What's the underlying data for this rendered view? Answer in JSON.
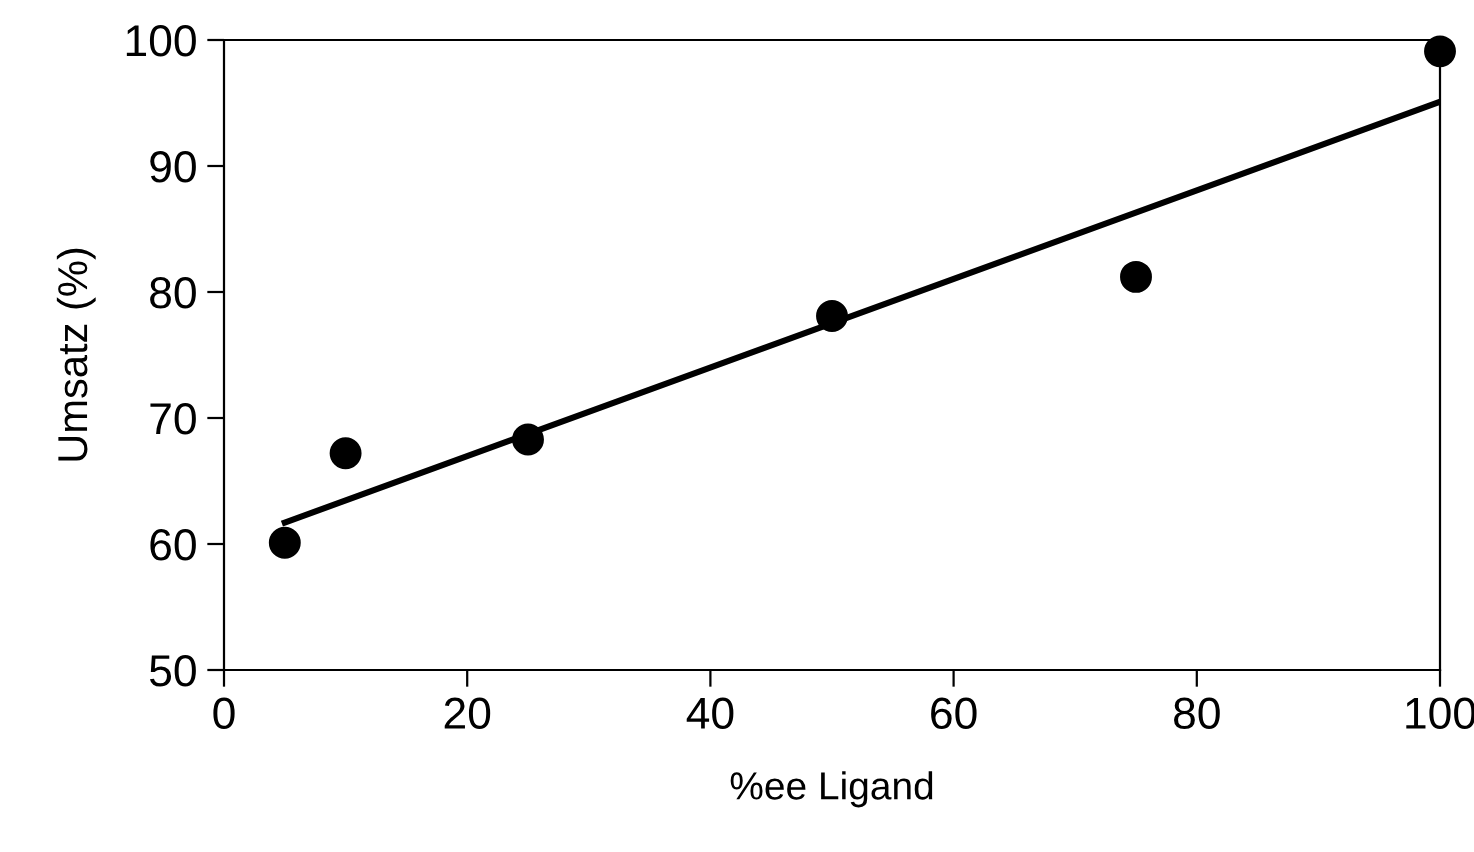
{
  "chart_data": {
    "type": "scatter",
    "xlabel": "%ee Ligand",
    "ylabel": "Umsatz (%)",
    "xlim": [
      0,
      100
    ],
    "ylim": [
      50,
      100
    ],
    "xticks": [
      0,
      20,
      40,
      60,
      80,
      100
    ],
    "yticks": [
      50,
      60,
      70,
      80,
      90,
      100
    ],
    "grid": false,
    "marker": "circle",
    "series": [
      {
        "color": "#000000",
        "x": [
          5,
          10,
          25,
          50,
          75,
          100
        ],
        "values": [
          60.1,
          67.2,
          68.3,
          78.1,
          81.2,
          99.1
        ]
      },
      {
        "type": "line",
        "color": "#000000",
        "line_style": "solid",
        "marker": "none",
        "x": [
          5,
          100
        ],
        "values": [
          61.7,
          95.1
        ]
      }
    ]
  }
}
